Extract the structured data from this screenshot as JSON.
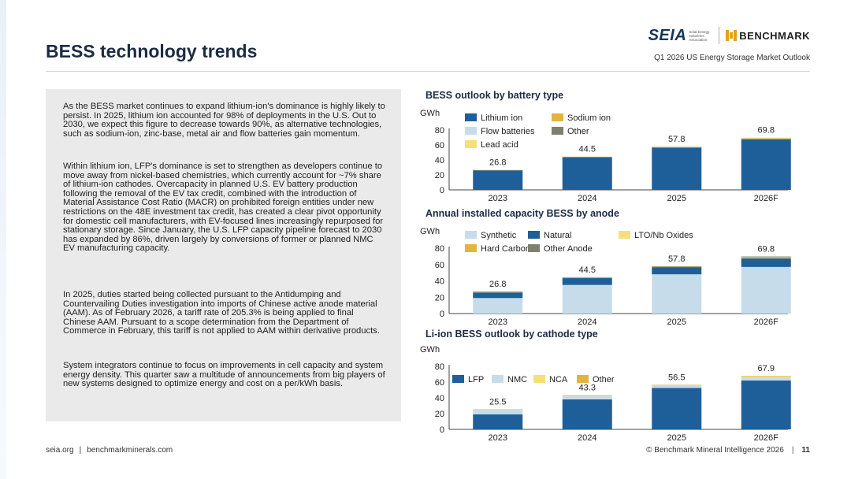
{
  "header": {
    "title": "BESS technology trends",
    "subtitle": "Q1 2026 US Energy Storage Market Outlook",
    "seia_logo": "SEIA",
    "seia_logo_small": "Solar Energy Industries Association",
    "benchmark_logo": "BENCHMARK"
  },
  "body_text": {
    "p1": "As the BESS market continues to expand lithium-ion's dominance is highly likely to persist. In 2025, lithium ion accounted for 98% of deployments in the U.S. Out to 2030, we expect this figure to decrease towards 90%, as alternative technologies, such as sodium-ion, zinc-base, metal air and flow batteries gain momentum.",
    "p2": "Within lithium ion, LFP's dominance is set to strengthen as developers continue to move away from nickel-based chemistries, which currently account for ~7% share of lithium-ion cathodes. Overcapacity in planned U.S. EV battery production following the removal of the EV tax credit, combined with the introduction of Material Assistance Cost Ratio (MACR) on prohibited foreign entities under new restrictions on the 48E investment tax credit, has created a clear pivot opportunity for domestic cell manufacturers, with EV-focused lines increasingly repurposed for stationary storage. Since January, the U.S. LFP capacity pipeline forecast to 2030 has expanded by 86%, driven largely by conversions of former or planned NMC EV manufacturing capacity.",
    "p3": "In 2025, duties started being collected pursuant to the Antidumping and Countervailing Duties investigation into imports of Chinese active anode material (AAM). As of February 2026, a tariff rate of 205.3% is being applied to final Chinese AAM. Pursuant to a scope determination from the Department of Commerce in February, this tariff is not applied to AAM within derivative products.",
    "p4": "System integrators continue to focus on improvements in cell capacity and system energy density. This quarter saw a multitude of announcements from big players of new systems designed to optimize energy and cost on a per/kWh basis."
  },
  "footer": {
    "left_site1": "seia.org",
    "left_sep": "|",
    "left_site2": "benchmarkminerals.com",
    "copyright": "© Benchmark Mineral Intelligence 2026",
    "sep": "|",
    "page": "11"
  },
  "chart_data": [
    {
      "type": "bar",
      "stacked": true,
      "title": "BESS outlook by battery type",
      "ylabel": "GWh",
      "ylim": [
        0,
        80
      ],
      "yticks": [
        0,
        20,
        40,
        60,
        80
      ],
      "categories": [
        "2023",
        "2024",
        "2025",
        "2026F"
      ],
      "totals": [
        "26.8",
        "44.5",
        "57.8",
        "69.8"
      ],
      "legend_layout": [
        [
          0,
          1
        ],
        [
          2,
          3
        ],
        [
          4
        ]
      ],
      "series": [
        {
          "name": "Lithium ion",
          "color": "#1f5f99",
          "values": [
            26.4,
            44.0,
            56.8,
            67.8
          ]
        },
        {
          "name": "Sodium ion",
          "color": "#e3b43e",
          "values": [
            0,
            0,
            0.1,
            0.2
          ]
        },
        {
          "name": "Flow batteries",
          "color": "#c7dcea",
          "values": [
            0,
            0,
            0.3,
            0.5
          ]
        },
        {
          "name": "Other",
          "color": "#7f7f6f",
          "values": [
            0.1,
            0.1,
            0.1,
            0.2
          ]
        },
        {
          "name": "Lead acid",
          "color": "#f5df7a",
          "values": [
            0.3,
            0.4,
            0.5,
            1.1
          ]
        }
      ]
    },
    {
      "type": "bar",
      "stacked": true,
      "title": "Annual installed capacity BESS by anode",
      "ylabel": "GWh",
      "ylim": [
        0,
        80
      ],
      "yticks": [
        0,
        20,
        40,
        60,
        80
      ],
      "categories": [
        "2023",
        "2024",
        "2025",
        "2026F"
      ],
      "totals": [
        "26.8",
        "44.5",
        "57.8",
        "69.8"
      ],
      "legend_layout": [
        [
          0,
          1,
          2
        ],
        [
          3,
          4
        ]
      ],
      "series": [
        {
          "name": "Synthetic",
          "color": "#c7dcea",
          "values": [
            19,
            35,
            48,
            57
          ]
        },
        {
          "name": "Natural",
          "color": "#1f5f99",
          "values": [
            7,
            8.6,
            9,
            10.5
          ]
        },
        {
          "name": "LTO/Nb Oxides",
          "color": "#f5df7a",
          "values": [
            0.3,
            0.3,
            0.3,
            0.5
          ]
        },
        {
          "name": "Hard Carbon",
          "color": "#e3b43e",
          "values": [
            0.4,
            0.4,
            0.3,
            1.0
          ]
        },
        {
          "name": "Other Anode",
          "color": "#7f7f6f",
          "values": [
            0.1,
            0.2,
            0.2,
            0.8
          ]
        }
      ]
    },
    {
      "type": "bar",
      "stacked": true,
      "title": "Li-ion BESS outlook by cathode type",
      "ylabel": "GWh",
      "ylim": [
        0,
        80
      ],
      "yticks": [
        0,
        20,
        40,
        60,
        80
      ],
      "categories": [
        "2023",
        "2024",
        "2025",
        "2026F"
      ],
      "totals": [
        "25.5",
        "43.3",
        "56.5",
        "67.9"
      ],
      "legend_layout": [
        [
          0,
          1,
          2,
          3
        ]
      ],
      "series": [
        {
          "name": "LFP",
          "color": "#1f5f99",
          "values": [
            19,
            38,
            52.5,
            62
          ]
        },
        {
          "name": "NMC",
          "color": "#c7dcea",
          "values": [
            6.3,
            5.1,
            3.5,
            4.2
          ]
        },
        {
          "name": "NCA",
          "color": "#f5df7a",
          "values": [
            0.1,
            0.1,
            0.4,
            1.4
          ]
        },
        {
          "name": "Other",
          "color": "#e3b43e",
          "values": [
            0.1,
            0.1,
            0.1,
            0.3
          ]
        }
      ]
    }
  ]
}
